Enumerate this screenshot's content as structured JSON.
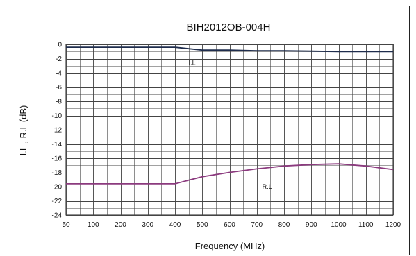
{
  "chart_data": {
    "type": "line",
    "title": "BIH2012OB-004H",
    "xlabel": "Frequency (MHz)",
    "ylabel": "I.L , R.L (dB)",
    "x_ticks": [
      50,
      100,
      200,
      300,
      400,
      500,
      600,
      700,
      800,
      900,
      1000,
      1100,
      1200
    ],
    "y_ticks": [
      0,
      -2,
      -4,
      -6,
      -8,
      -10,
      -12,
      -14,
      -16,
      -18,
      -20,
      -22,
      -24
    ],
    "xlim": [
      50,
      1200
    ],
    "ylim": [
      -24,
      0
    ],
    "grid": true,
    "series": [
      {
        "name": "I.L",
        "color": "#1f2d4d",
        "label_at": [
          450,
          -2.9
        ],
        "x": [
          50,
          100,
          200,
          300,
          400,
          450,
          500,
          600,
          700,
          800,
          900,
          1000,
          1100,
          1200
        ],
        "y": [
          -0.4,
          -0.4,
          -0.4,
          -0.4,
          -0.4,
          -0.6,
          -0.8,
          -0.8,
          -0.9,
          -0.9,
          -0.95,
          -1.0,
          -1.0,
          -1.0
        ]
      },
      {
        "name": "R.L",
        "color": "#8b3a7e",
        "label_at": [
          720,
          -20.3
        ],
        "x": [
          50,
          100,
          200,
          300,
          350,
          400,
          450,
          500,
          600,
          700,
          800,
          900,
          1000,
          1100,
          1200
        ],
        "y": [
          -19.6,
          -19.6,
          -19.6,
          -19.6,
          -19.6,
          -19.6,
          -19.1,
          -18.6,
          -18.0,
          -17.5,
          -17.1,
          -16.9,
          -16.8,
          -17.1,
          -17.6
        ]
      }
    ]
  }
}
